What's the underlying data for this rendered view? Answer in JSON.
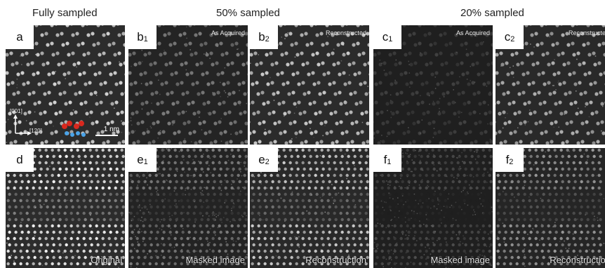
{
  "headers": {
    "fully": "Fully sampled",
    "fifty": "50% sampled",
    "twenty": "20% sampled"
  },
  "panels": {
    "a": {
      "letter": "a",
      "sub": ""
    },
    "b1": {
      "letter": "b",
      "sub": "1",
      "tag": "As Acquired"
    },
    "b2": {
      "letter": "b",
      "sub": "2",
      "tag": "Reconstructed"
    },
    "c1": {
      "letter": "c",
      "sub": "1",
      "tag": "As Acquired"
    },
    "c2": {
      "letter": "c",
      "sub": "2",
      "tag": "Reconstructed"
    },
    "d": {
      "letter": "d",
      "sub": "",
      "tag": "Original"
    },
    "e1": {
      "letter": "e",
      "sub": "1",
      "tag": "Masked image"
    },
    "e2": {
      "letter": "e",
      "sub": "2",
      "tag": "Reconstruction"
    },
    "f1": {
      "letter": "f",
      "sub": "1",
      "tag": "Masked image"
    },
    "f2": {
      "letter": "f",
      "sub": "2",
      "tag": "Reconstruction"
    }
  },
  "annotations": {
    "scale": "1 nm",
    "axis_vertical": "[001]",
    "axis_horizontal": "[120]"
  },
  "colors": {
    "atom_red": "#d8281e",
    "atom_blue": "#4aa3e8"
  }
}
